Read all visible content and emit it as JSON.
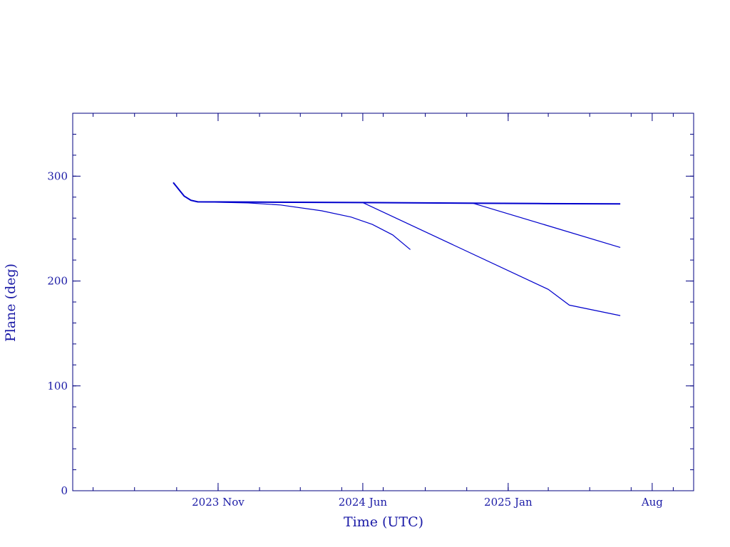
{
  "chart_data": {
    "type": "line",
    "xlabel": "Time (UTC)",
    "ylabel": "Plane (deg)",
    "ylim": [
      0,
      360
    ],
    "yticks": [
      0,
      100,
      200,
      300
    ],
    "x_date_range": [
      "2023-04-01",
      "2025-10-01"
    ],
    "x_ticks": [
      {
        "date": "2023-11-01",
        "label": "2023 Nov"
      },
      {
        "date": "2024-06-01",
        "label": "2024 Jun"
      },
      {
        "date": "2025-01-01",
        "label": "2025 Jan"
      },
      {
        "date": "2025-08-01",
        "label": "Aug"
      }
    ],
    "grid": false,
    "line_color": "#0000cc",
    "axis_color": "#000080",
    "series": [
      {
        "points": [
          [
            "2023-08-27",
            294
          ],
          [
            "2023-09-12",
            281
          ],
          [
            "2023-09-22",
            277
          ],
          [
            "2023-10-02",
            275.5
          ],
          [
            "2024-01-01",
            275.2
          ],
          [
            "2024-06-01",
            274.8
          ],
          [
            "2024-11-01",
            274.3
          ],
          [
            "2025-02-15",
            273.9
          ],
          [
            "2025-06-15",
            273.5
          ]
        ]
      },
      {
        "points": [
          [
            "2023-10-02",
            275.5
          ],
          [
            "2023-12-15",
            274.5
          ],
          [
            "2024-02-01",
            272.5
          ],
          [
            "2024-04-01",
            267
          ],
          [
            "2024-05-15",
            261
          ],
          [
            "2024-06-15",
            254
          ],
          [
            "2024-07-15",
            244
          ],
          [
            "2024-08-10",
            230
          ]
        ]
      },
      {
        "points": [
          [
            "2024-06-01",
            274.8
          ],
          [
            "2025-03-01",
            192
          ],
          [
            "2025-04-01",
            177
          ],
          [
            "2025-06-15",
            167
          ]
        ]
      },
      {
        "points": [
          [
            "2024-11-10",
            274.2
          ],
          [
            "2025-06-15",
            232
          ]
        ]
      }
    ]
  }
}
